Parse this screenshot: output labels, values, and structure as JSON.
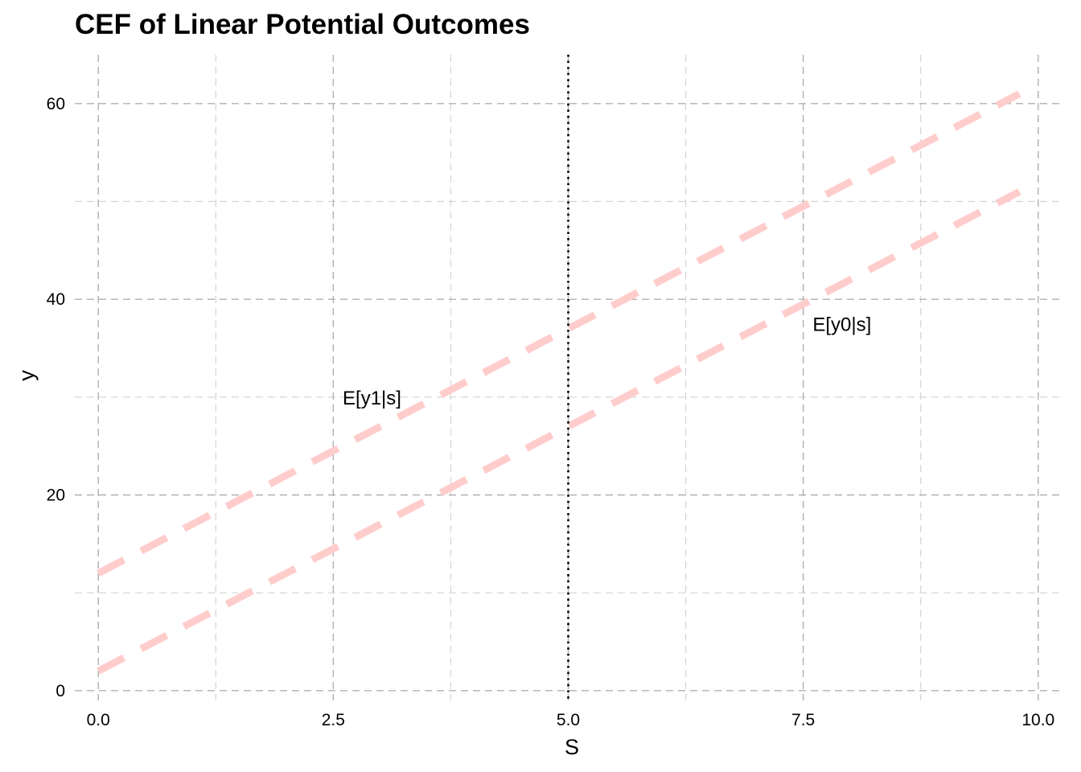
{
  "chart_data": {
    "type": "line",
    "title": "CEF of Linear Potential Outcomes",
    "xlabel": "S",
    "ylabel": "y",
    "xlim": [
      -0.25,
      10.25
    ],
    "ylim": [
      -1,
      65
    ],
    "x_major_ticks": [
      0,
      2.5,
      5,
      7.5,
      10
    ],
    "x_tick_labels": [
      "0.0",
      "2.5",
      "5.0",
      "7.5",
      "10.0"
    ],
    "x_minor_ticks": [
      1.25,
      3.75,
      6.25,
      8.75
    ],
    "y_major_ticks": [
      0,
      20,
      40,
      60
    ],
    "y_tick_labels": [
      "0",
      "20",
      "40",
      "60"
    ],
    "y_minor_ticks": [
      10,
      30,
      50
    ],
    "grid": true,
    "legend": "none",
    "x": [
      0,
      9.8
    ],
    "series": [
      {
        "values": [
          12,
          61.0
        ],
        "color": "#ffcccc",
        "style": "dashed"
      },
      {
        "values": [
          2,
          51.0
        ],
        "color": "#ffcccc",
        "style": "dashed"
      }
    ],
    "vline": {
      "x": 5,
      "style": "dotted",
      "color": "#000000"
    },
    "annotations": [
      {
        "text": "E[y1|s]",
        "x": 2.6,
        "y": 30
      },
      {
        "text": "E[y0|s]",
        "x": 7.6,
        "y": 37.5
      }
    ]
  }
}
